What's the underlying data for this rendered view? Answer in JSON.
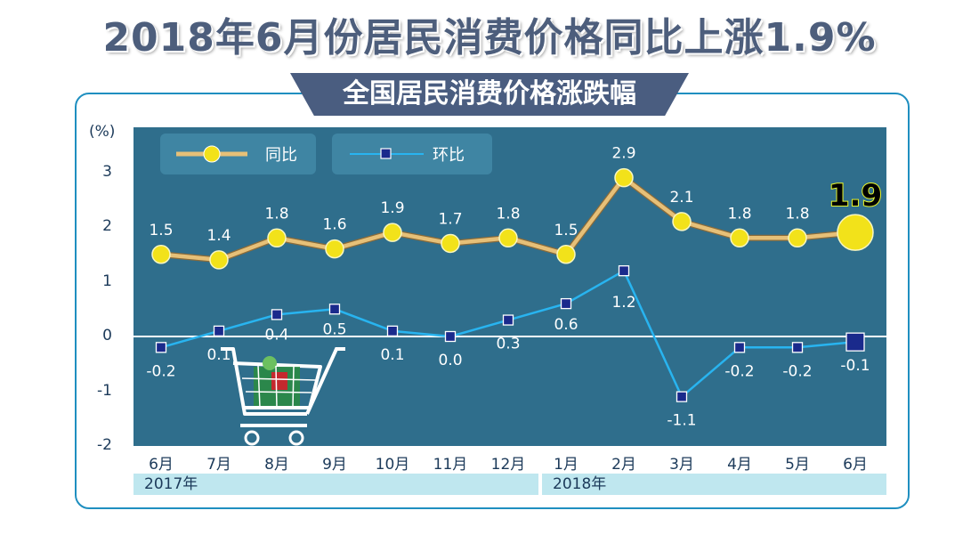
{
  "title": "2018年6月份居民消费价格同比上涨1.9%",
  "subtitle": "全国居民消费价格涨跌幅",
  "colors": {
    "plot_bg": "#2f6e8c",
    "yoy_line": "#e6c078",
    "yoy_marker": "#f2e21a",
    "mom_line": "#28b4f0",
    "mom_marker": "#1a2a8c",
    "frame": "#1f8fc0"
  },
  "chart_data": {
    "type": "line",
    "ylabel": "(%)",
    "ylim": [
      -2,
      3
    ],
    "yticks": [
      "3",
      "2",
      "1",
      "0",
      "-1",
      "-2"
    ],
    "categories": [
      "6月",
      "7月",
      "8月",
      "9月",
      "10月",
      "11月",
      "12月",
      "1月",
      "2月",
      "3月",
      "4月",
      "5月",
      "6月"
    ],
    "years": [
      "2017年",
      "2018年"
    ],
    "series": [
      {
        "name": "同比",
        "values": [
          1.5,
          1.4,
          1.8,
          1.6,
          1.9,
          1.7,
          1.8,
          1.5,
          2.9,
          2.1,
          1.8,
          1.8,
          1.9
        ],
        "labels": [
          "1.5",
          "1.4",
          "1.8",
          "1.6",
          "1.9",
          "1.7",
          "1.8",
          "1.5",
          "2.9",
          "2.1",
          "1.8",
          "1.8",
          "1.9"
        ]
      },
      {
        "name": "环比",
        "values": [
          -0.2,
          0.1,
          0.4,
          0.5,
          0.1,
          0.0,
          0.3,
          0.6,
          1.2,
          -1.1,
          -0.2,
          -0.2,
          -0.1
        ],
        "labels": [
          "-0.2",
          "0.1",
          "0.4",
          "0.5",
          "0.1",
          "0.0",
          "0.3",
          "0.6",
          "1.2",
          "-1.1",
          "-0.2",
          "-0.2",
          "-0.1"
        ]
      }
    ],
    "grid": false,
    "legend": "top-left"
  }
}
